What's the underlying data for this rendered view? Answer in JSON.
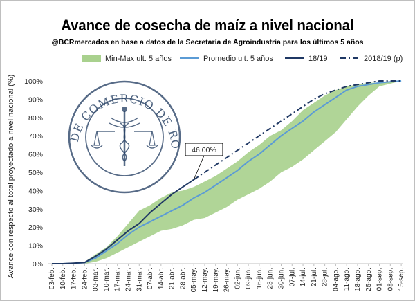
{
  "title": "Avance de cosecha de maíz a nivel nacional",
  "subtitle": "@BCRmercados en base a datos de la Secretaría de Agroindustria para los últimos 5 años",
  "watermark": {
    "text": "BOLSA DE COMERCIO DE ROSARIO",
    "color": "#1f3a5f"
  },
  "chart_data": {
    "type": "line",
    "ylabel": "Avance con respecto al total proyectado a nivel nacional (%)",
    "xlabel": "",
    "ylim": [
      0,
      100
    ],
    "yticks": [
      "0%",
      "10%",
      "20%",
      "30%",
      "40%",
      "50%",
      "60%",
      "70%",
      "80%",
      "90%",
      "100%"
    ],
    "categories": [
      "03-feb.",
      "10-feb.",
      "17-feb.",
      "24-feb.",
      "03-mar.",
      "10-mar.",
      "17-mar.",
      "24-mar.",
      "31-mar.",
      "07-abr.",
      "14-abr.",
      "21-abr.",
      "28-abr.",
      "05-may.",
      "12-may.",
      "19-may.",
      "26-may.",
      "02-jun.",
      "09-jun.",
      "16-jun.",
      "23-jun.",
      "30-jun.",
      "07-jul.",
      "14-jul.",
      "21-jul.",
      "28-jul.",
      "04-ago.",
      "11-ago.",
      "18-ago.",
      "25-ago.",
      "01-sep.",
      "08-sep.",
      "15-sep."
    ],
    "legend_position": "top",
    "band": {
      "name": "Min-Max ult. 5 años",
      "color": "#a9d18e",
      "max": [
        0,
        0,
        0.5,
        1,
        5,
        9,
        15,
        22,
        29,
        32,
        36,
        39,
        40,
        42,
        45,
        48,
        52,
        56,
        61,
        65,
        70,
        73,
        78,
        84,
        88,
        92,
        95,
        97,
        98,
        99,
        99,
        99.5,
        100
      ],
      "min": [
        0,
        0,
        0,
        0,
        1,
        3,
        6,
        9,
        12,
        15,
        18,
        19,
        21,
        24,
        25,
        28,
        31,
        35,
        38,
        41,
        45,
        50,
        53,
        57,
        62,
        67,
        72,
        79,
        86,
        92,
        97,
        98.5,
        100
      ]
    },
    "series": [
      {
        "name": "Promedio ult. 5 años",
        "color": "#5b9bd5",
        "dashed": false,
        "values": [
          0,
          0,
          0.2,
          0.6,
          3,
          7,
          11,
          16,
          20,
          23,
          26,
          29,
          32,
          36,
          39,
          43,
          47,
          51,
          56,
          60,
          65,
          70,
          74,
          78,
          83,
          87,
          91,
          95,
          97,
          98,
          99,
          99.5,
          100
        ]
      },
      {
        "name": "18/19",
        "color": "#1f3864",
        "dashed": false,
        "values": [
          0,
          0,
          0.3,
          0.7,
          4,
          8,
          13,
          18,
          22,
          28,
          33,
          38,
          42,
          46,
          null,
          null,
          null,
          null,
          null,
          null,
          null,
          null,
          null,
          null,
          null,
          null,
          null,
          null,
          null,
          null,
          null,
          null,
          null
        ]
      },
      {
        "name": "2018/19 (p)",
        "color": "#1f3864",
        "dashed": true,
        "values": [
          null,
          null,
          null,
          null,
          null,
          null,
          null,
          null,
          null,
          null,
          null,
          null,
          null,
          46,
          50,
          54,
          58,
          62,
          66,
          70,
          74,
          78,
          82,
          86,
          90,
          93,
          95,
          97,
          98,
          99,
          100,
          100,
          100
        ]
      }
    ],
    "annotation": {
      "text": "46,00%",
      "category": "05-may.",
      "value": 46
    }
  }
}
